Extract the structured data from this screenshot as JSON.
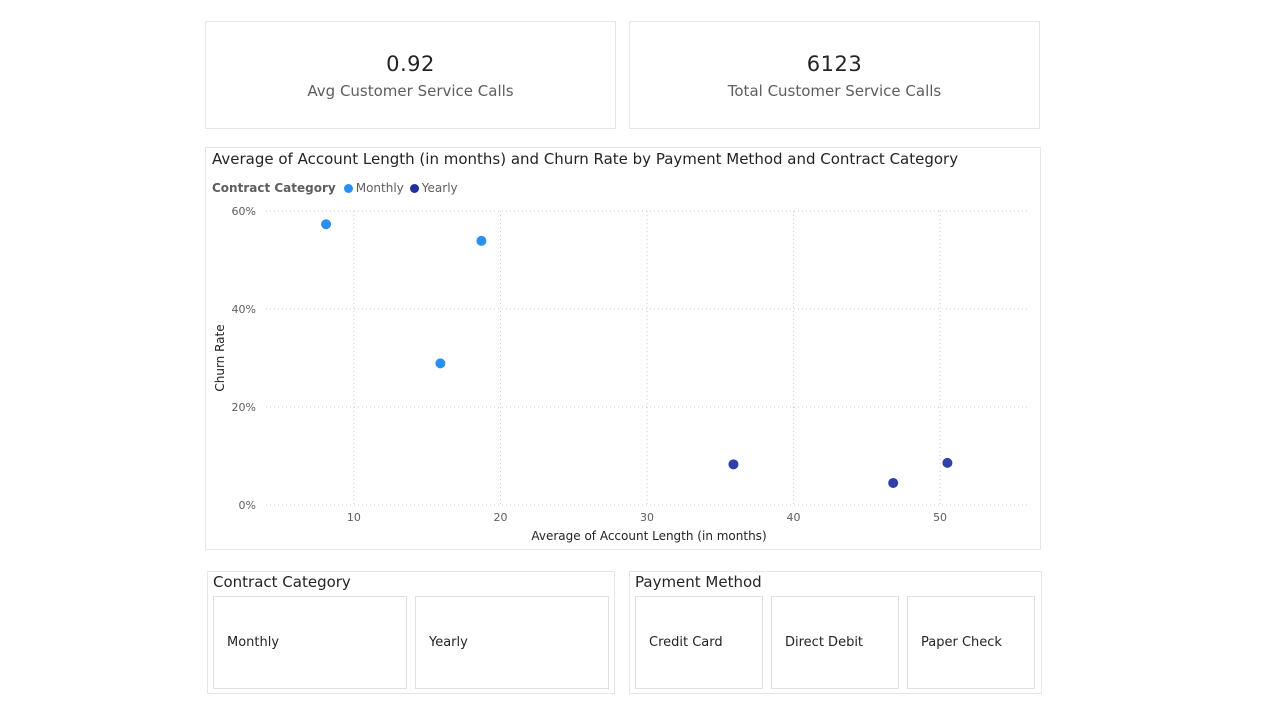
{
  "kpis": {
    "avg_calls": {
      "value": "0.92",
      "label": "Avg Customer Service Calls"
    },
    "total_calls": {
      "value": "6123",
      "label": "Total Customer Service Calls"
    }
  },
  "scatter": {
    "title": "Average of Account Length (in months) and Churn Rate by Payment Method and Contract Category",
    "legend": {
      "title": "Contract Category",
      "items": [
        {
          "name": "Monthly",
          "color": "#2b8ff0"
        },
        {
          "name": "Yearly",
          "color": "#1e2f9e"
        }
      ]
    }
  },
  "chart_data": {
    "type": "scatter",
    "title": "Average of Account Length (in months) and Churn Rate by Payment Method and Contract Category",
    "xlabel": "Average of Account Length (in months)",
    "ylabel": "Churn Rate",
    "xlim": [
      4,
      56
    ],
    "ylim": [
      0,
      60
    ],
    "x_ticks": [
      10,
      20,
      30,
      40,
      50
    ],
    "y_ticks": [
      0,
      20,
      40,
      60
    ],
    "y_tick_labels": [
      "0%",
      "20%",
      "40%",
      "60%"
    ],
    "grid": true,
    "legend_position": "top-left",
    "series": [
      {
        "name": "Monthly",
        "color": "#2b8ff0",
        "points": [
          {
            "x": 8.1,
            "y": 57.3
          },
          {
            "x": 18.7,
            "y": 53.9
          },
          {
            "x": 15.9,
            "y": 28.9
          }
        ]
      },
      {
        "name": "Yearly",
        "color": "#3040a8",
        "points": [
          {
            "x": 35.9,
            "y": 8.3
          },
          {
            "x": 50.5,
            "y": 8.6
          },
          {
            "x": 46.8,
            "y": 4.5
          }
        ]
      }
    ]
  },
  "slicers": {
    "contract": {
      "title": "Contract Category",
      "options": [
        "Monthly",
        "Yearly"
      ]
    },
    "payment": {
      "title": "Payment Method",
      "options": [
        "Credit Card",
        "Direct Debit",
        "Paper Check"
      ]
    }
  }
}
